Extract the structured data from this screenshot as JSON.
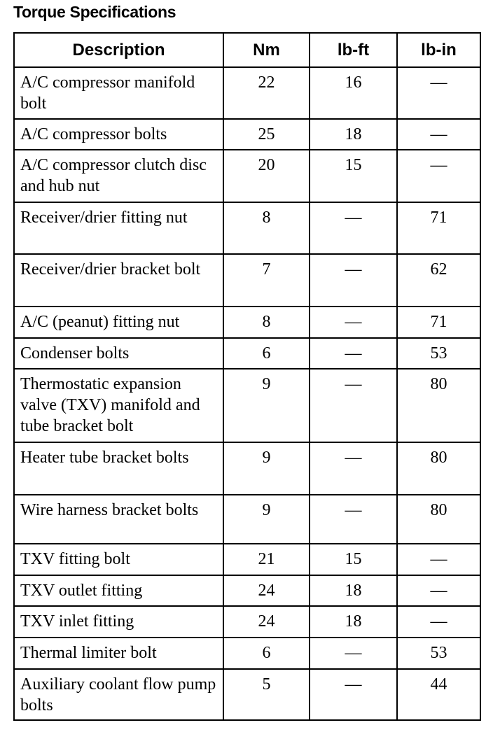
{
  "title": "Torque Specifications",
  "columns": [
    "Description",
    "Nm",
    "lb-ft",
    "lb-in"
  ],
  "rows": [
    {
      "description": "A/C compressor manifold bolt",
      "nm": "22",
      "lbft": "16",
      "lbin": "—"
    },
    {
      "description": "A/C compressor bolts",
      "nm": "25",
      "lbft": "18",
      "lbin": "—"
    },
    {
      "description": "A/C compressor clutch disc and hub nut",
      "nm": "20",
      "lbft": "15",
      "lbin": "—"
    },
    {
      "description": "Receiver/drier fitting nut",
      "nm": "8",
      "lbft": "—",
      "lbin": "71"
    },
    {
      "description": "Receiver/drier bracket bolt",
      "nm": "7",
      "lbft": "—",
      "lbin": "62"
    },
    {
      "description": "A/C (peanut) fitting nut",
      "nm": "8",
      "lbft": "—",
      "lbin": "71"
    },
    {
      "description": "Condenser bolts",
      "nm": "6",
      "lbft": "—",
      "lbin": "53"
    },
    {
      "description": "Thermostatic expansion valve (TXV) manifold and tube bracket bolt",
      "nm": "9",
      "lbft": "—",
      "lbin": "80"
    },
    {
      "description": "Heater tube bracket bolts",
      "nm": "9",
      "lbft": "—",
      "lbin": "80"
    },
    {
      "description": "Wire harness bracket bolts",
      "nm": "9",
      "lbft": "—",
      "lbin": "80"
    },
    {
      "description": "TXV fitting bolt",
      "nm": "21",
      "lbft": "15",
      "lbin": "—"
    },
    {
      "description": "TXV outlet fitting",
      "nm": "24",
      "lbft": "18",
      "lbin": "—"
    },
    {
      "description": "TXV inlet fitting",
      "nm": "24",
      "lbft": "18",
      "lbin": "—"
    },
    {
      "description": "Thermal limiter bolt",
      "nm": "6",
      "lbft": "—",
      "lbin": "53"
    },
    {
      "description": "Auxiliary coolant flow pump bolts",
      "nm": "5",
      "lbft": "—",
      "lbin": "44"
    }
  ]
}
